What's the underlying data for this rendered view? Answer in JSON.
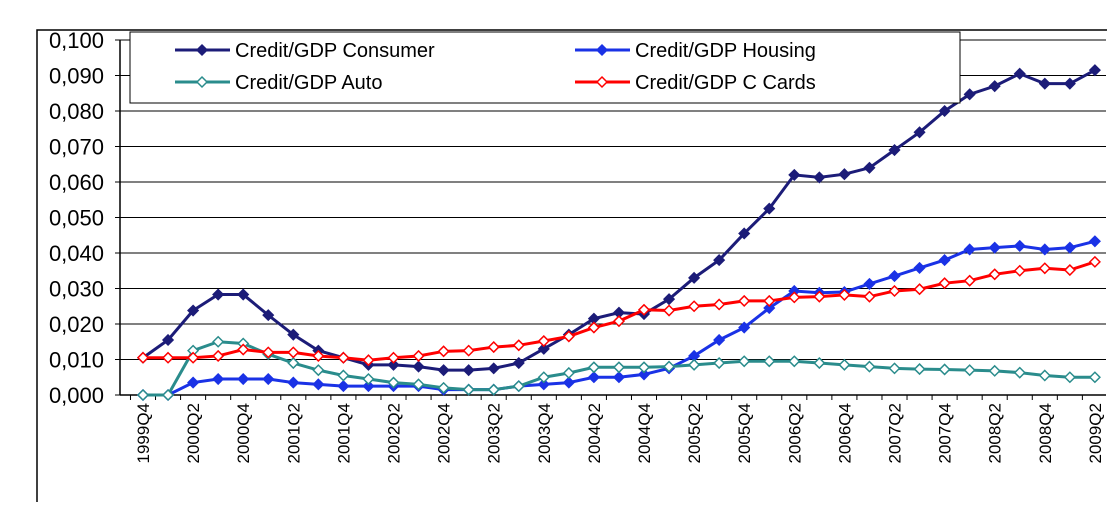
{
  "chart_data": {
    "type": "line",
    "categories": [
      "1999Q4",
      null,
      "2000Q2",
      null,
      "2000Q4",
      null,
      "2001Q2",
      null,
      "2001Q4",
      null,
      "2002Q2",
      null,
      "2002Q4",
      null,
      "2003Q2",
      null,
      "2003Q4",
      null,
      "2004Q2",
      null,
      "2004Q4",
      null,
      "2005Q2",
      null,
      "2005Q4",
      null,
      "2006Q2",
      null,
      "2006Q4",
      null,
      "2007Q2",
      null,
      "2007Q4",
      null,
      "2008Q2",
      null,
      "2008Q4",
      null,
      "2009Q2"
    ],
    "series": [
      {
        "name": "Credit/GDP Consumer",
        "color": "#1c1c78",
        "marker_fill": "#1c1c78",
        "values": [
          0.0105,
          0.0155,
          0.0238,
          0.0283,
          0.0283,
          0.0225,
          0.017,
          0.0125,
          0.0105,
          0.0085,
          0.0085,
          0.008,
          0.007,
          0.007,
          0.0075,
          0.009,
          0.013,
          0.017,
          0.0215,
          0.0232,
          0.0228,
          0.027,
          0.033,
          0.038,
          0.0455,
          0.0525,
          0.062,
          0.0613,
          0.0622,
          0.064,
          0.069,
          0.074,
          0.08,
          0.0847,
          0.087,
          0.0905,
          0.0877,
          0.0877,
          0.0915
        ]
      },
      {
        "name": "Credit/GDP Housing",
        "color": "#1a32e6",
        "marker_fill": "#1a32e6",
        "values": [
          0,
          0,
          0.0035,
          0.0045,
          0.0045,
          0.0045,
          0.0035,
          0.003,
          0.0025,
          0.0025,
          0.0025,
          0.0025,
          0.0015,
          0.0015,
          0.0015,
          0.0025,
          0.003,
          0.0035,
          0.005,
          0.005,
          0.0058,
          0.0075,
          0.011,
          0.0155,
          0.019,
          0.0245,
          0.0293,
          0.0288,
          0.029,
          0.0313,
          0.0335,
          0.0358,
          0.038,
          0.041,
          0.0415,
          0.042,
          0.041,
          0.0415,
          0.0433
        ]
      },
      {
        "name": "Credit/GDP Auto",
        "color": "#2a8c8c",
        "marker_fill": "#ffffff",
        "values": [
          0,
          0,
          0.0125,
          0.015,
          0.0145,
          0.0115,
          0.009,
          0.007,
          0.0055,
          0.0045,
          0.0035,
          0.003,
          0.002,
          0.0015,
          0.0015,
          0.0025,
          0.005,
          0.0062,
          0.0078,
          0.0078,
          0.0078,
          0.008,
          0.0085,
          0.009,
          0.0095,
          0.0095,
          0.0095,
          0.009,
          0.0085,
          0.008,
          0.0075,
          0.0073,
          0.0072,
          0.007,
          0.0068,
          0.0063,
          0.0055,
          0.005,
          0.005
        ]
      },
      {
        "name": "Credit/GDP C Cards",
        "color": "#ff0000",
        "marker_fill": "#ffffff",
        "values": [
          0.0105,
          0.0105,
          0.0105,
          0.011,
          0.0128,
          0.012,
          0.012,
          0.011,
          0.0105,
          0.0098,
          0.0105,
          0.011,
          0.0123,
          0.0125,
          0.0135,
          0.014,
          0.0152,
          0.0165,
          0.019,
          0.0208,
          0.024,
          0.0238,
          0.025,
          0.0255,
          0.0265,
          0.0265,
          0.0275,
          0.0277,
          0.0282,
          0.0277,
          0.0293,
          0.0298,
          0.0315,
          0.0322,
          0.034,
          0.035,
          0.0357,
          0.0352,
          0.0375
        ]
      }
    ],
    "ylim": [
      0,
      0.1
    ],
    "yticks": [
      {
        "value": 0,
        "label": "0,000"
      },
      {
        "value": 0.01,
        "label": "0,010"
      },
      {
        "value": 0.02,
        "label": "0,020"
      },
      {
        "value": 0.03,
        "label": "0,030"
      },
      {
        "value": 0.04,
        "label": "0,040"
      },
      {
        "value": 0.05,
        "label": "0,050"
      },
      {
        "value": 0.06,
        "label": "0,060"
      },
      {
        "value": 0.07,
        "label": "0,070"
      },
      {
        "value": 0.08,
        "label": "0,080"
      },
      {
        "value": 0.09,
        "label": "0,090"
      },
      {
        "value": 0.1,
        "label": "0,100"
      }
    ],
    "grid": true
  }
}
